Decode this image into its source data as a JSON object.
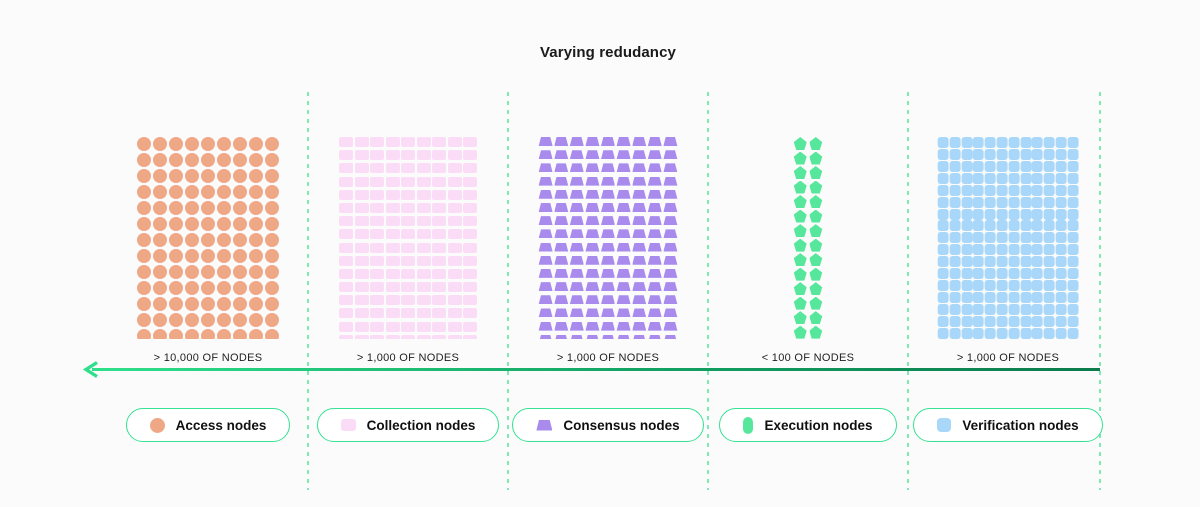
{
  "title": "Varying redudancy",
  "colors": {
    "background": "#FAFBFA",
    "divider": "#7FE9B4",
    "arrow_start": "#2EE08B",
    "arrow_end": "#0C7B4C",
    "pill_border": "#35E193",
    "text": "#1A1A1A"
  },
  "arrow": {
    "direction": "left"
  },
  "sections": [
    {
      "id": "access",
      "count_label": "> 10,000 OF NODES",
      "node_color": "#EFA886",
      "grid": {
        "shape": "circle",
        "cols": 9,
        "rows": 13
      },
      "legend": {
        "label": "Access nodes",
        "icon": "circle-icon"
      }
    },
    {
      "id": "collection",
      "count_label": "> 1,000 OF NODES",
      "node_color": "#FBDCF7",
      "grid": {
        "shape": "rect",
        "cols": 9,
        "rows": 16
      },
      "legend": {
        "label": "Collection nodes",
        "icon": "rounded-square-icon"
      }
    },
    {
      "id": "consensus",
      "count_label": "> 1,000 OF NODES",
      "node_color": "#A98BEE",
      "grid": {
        "shape": "trapezoid",
        "cols": 9,
        "rows": 16
      },
      "legend": {
        "label": "Consensus nodes",
        "icon": "trapezoid-icon"
      }
    },
    {
      "id": "execution",
      "count_label": "< 100 OF NODES",
      "node_color": "#57E79C",
      "grid": {
        "shape": "pentagon",
        "cols": 2,
        "rows": 14
      },
      "legend": {
        "label": "Execution nodes",
        "icon": "capsule-icon"
      }
    },
    {
      "id": "verification",
      "count_label": "> 1,000 OF NODES",
      "node_color": "#A9D7F9",
      "grid": {
        "shape": "square",
        "cols": 12,
        "rows": 17
      },
      "legend": {
        "label": "Verification nodes",
        "icon": "rounded-square-icon"
      }
    }
  ]
}
